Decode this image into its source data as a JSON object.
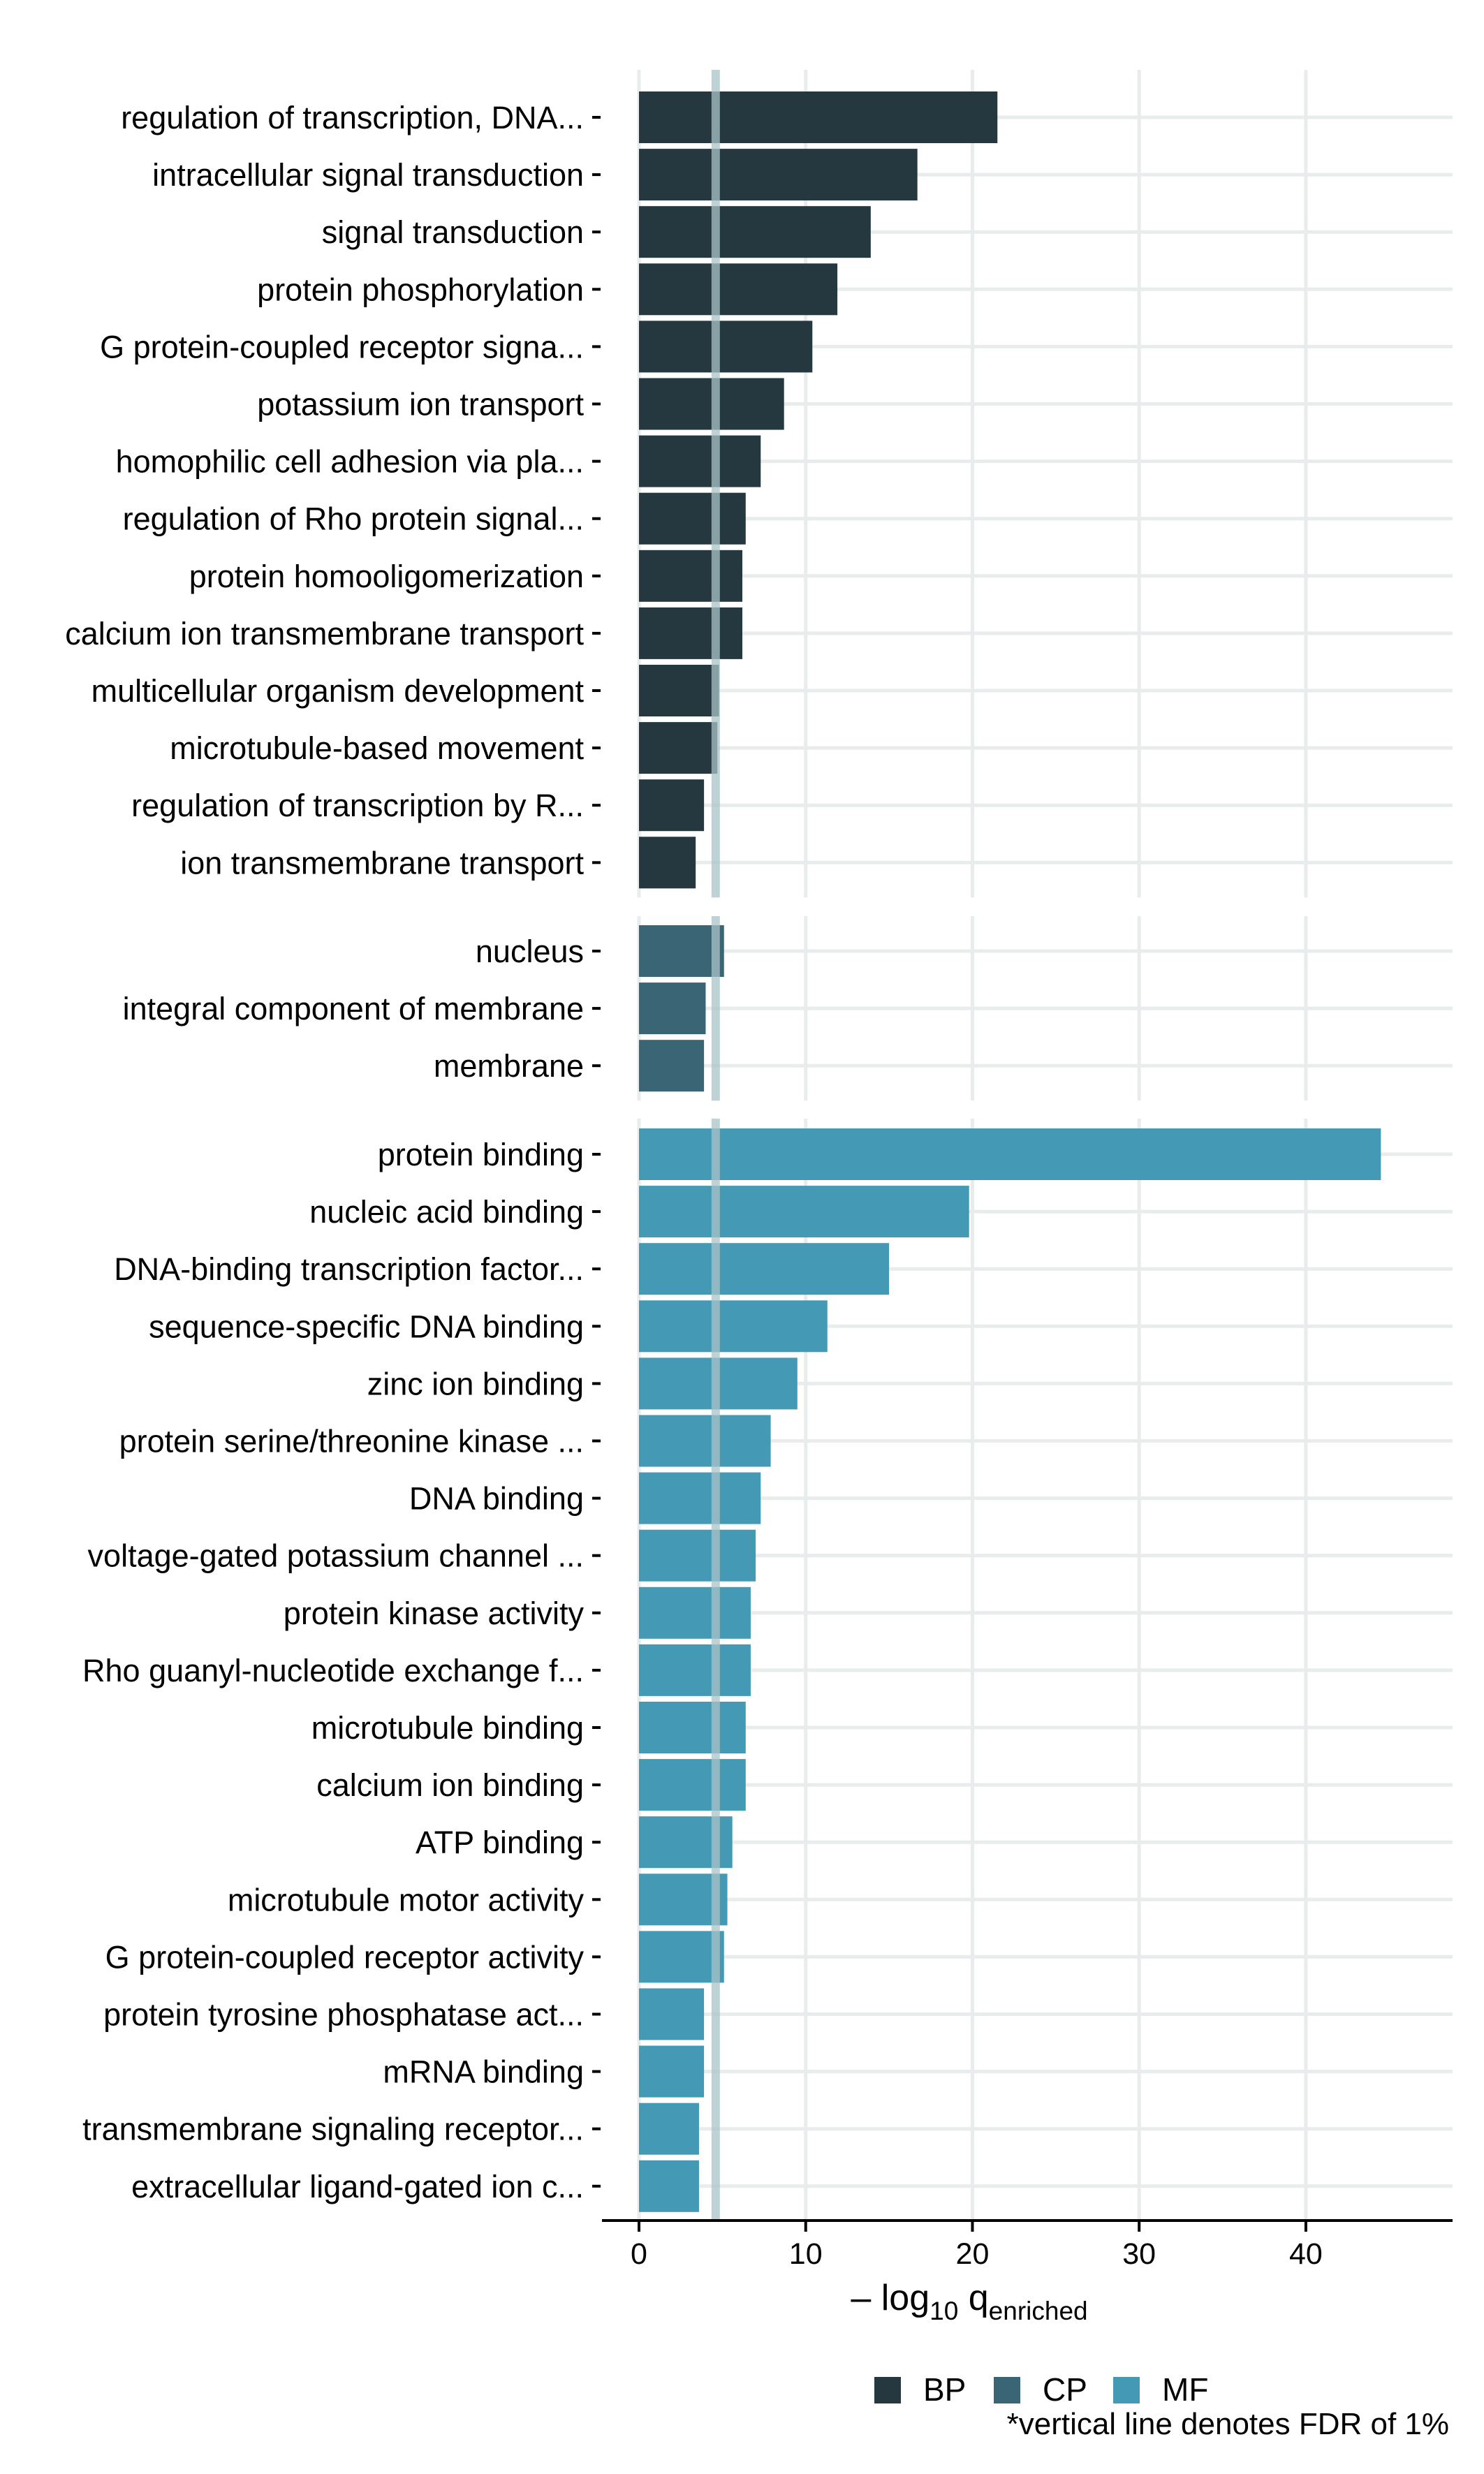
{
  "chart_data": {
    "type": "bar",
    "orientation": "horizontal",
    "facets": [
      {
        "name": "BP",
        "color": "#25383f",
        "categories": [
          "regulation of transcription, DNA...",
          "intracellular signal transduction",
          "signal transduction",
          "protein phosphorylation",
          "G protein-coupled receptor signa...",
          "potassium ion transport",
          "homophilic cell adhesion via pla...",
          "regulation of Rho protein signal...",
          "protein homooligomerization",
          "calcium ion transmembrane transport",
          "multicellular organism development",
          "microtubule-based movement",
          "regulation of transcription by R...",
          "ion transmembrane transport"
        ],
        "values": [
          21.5,
          16.7,
          13.9,
          11.9,
          10.4,
          8.7,
          7.3,
          6.4,
          6.2,
          6.2,
          4.8,
          4.7,
          3.9,
          3.4
        ]
      },
      {
        "name": "CP",
        "color": "#396574",
        "categories": [
          "nucleus",
          "integral component of membrane",
          "membrane"
        ],
        "values": [
          5.1,
          4.0,
          3.9
        ]
      },
      {
        "name": "MF",
        "color": "#4499b5",
        "categories": [
          "protein binding",
          "nucleic acid binding",
          "DNA-binding transcription factor...",
          "sequence-specific DNA binding",
          "zinc ion binding",
          "protein serine/threonine kinase ...",
          "DNA binding",
          "voltage-gated potassium channel ...",
          "protein kinase activity",
          "Rho guanyl-nucleotide exchange f...",
          "microtubule binding",
          "calcium ion binding",
          "ATP binding",
          "microtubule motor activity",
          "G protein-coupled receptor activity",
          "protein tyrosine phosphatase act...",
          "mRNA binding",
          "transmembrane signaling receptor...",
          "extracellular ligand-gated ion c..."
        ],
        "values": [
          44.5,
          19.8,
          15.0,
          11.3,
          9.5,
          7.9,
          7.3,
          7.0,
          6.7,
          6.7,
          6.4,
          6.4,
          5.6,
          5.3,
          5.1,
          3.9,
          3.9,
          3.6,
          3.6
        ]
      }
    ],
    "fdr_threshold": 4.6,
    "xlim": [
      0,
      48.8
    ],
    "xticks": [
      0,
      10,
      20,
      30,
      40
    ],
    "xlabel": {
      "prefix": "– log",
      "sub": "10",
      "q": " q",
      "q_sub": "enriched"
    },
    "legend": {
      "position": "bottom-right",
      "items": [
        {
          "label": "BP",
          "color": "#25383f"
        },
        {
          "label": "CP",
          "color": "#396574"
        },
        {
          "label": "MF",
          "color": "#4499b5"
        }
      ]
    },
    "note": "*vertical line denotes FDR of 1%",
    "grid": true
  },
  "colors": {
    "grid": "#e8ecec",
    "fdr_line": "#a9c4c8",
    "axis": "#000000"
  }
}
